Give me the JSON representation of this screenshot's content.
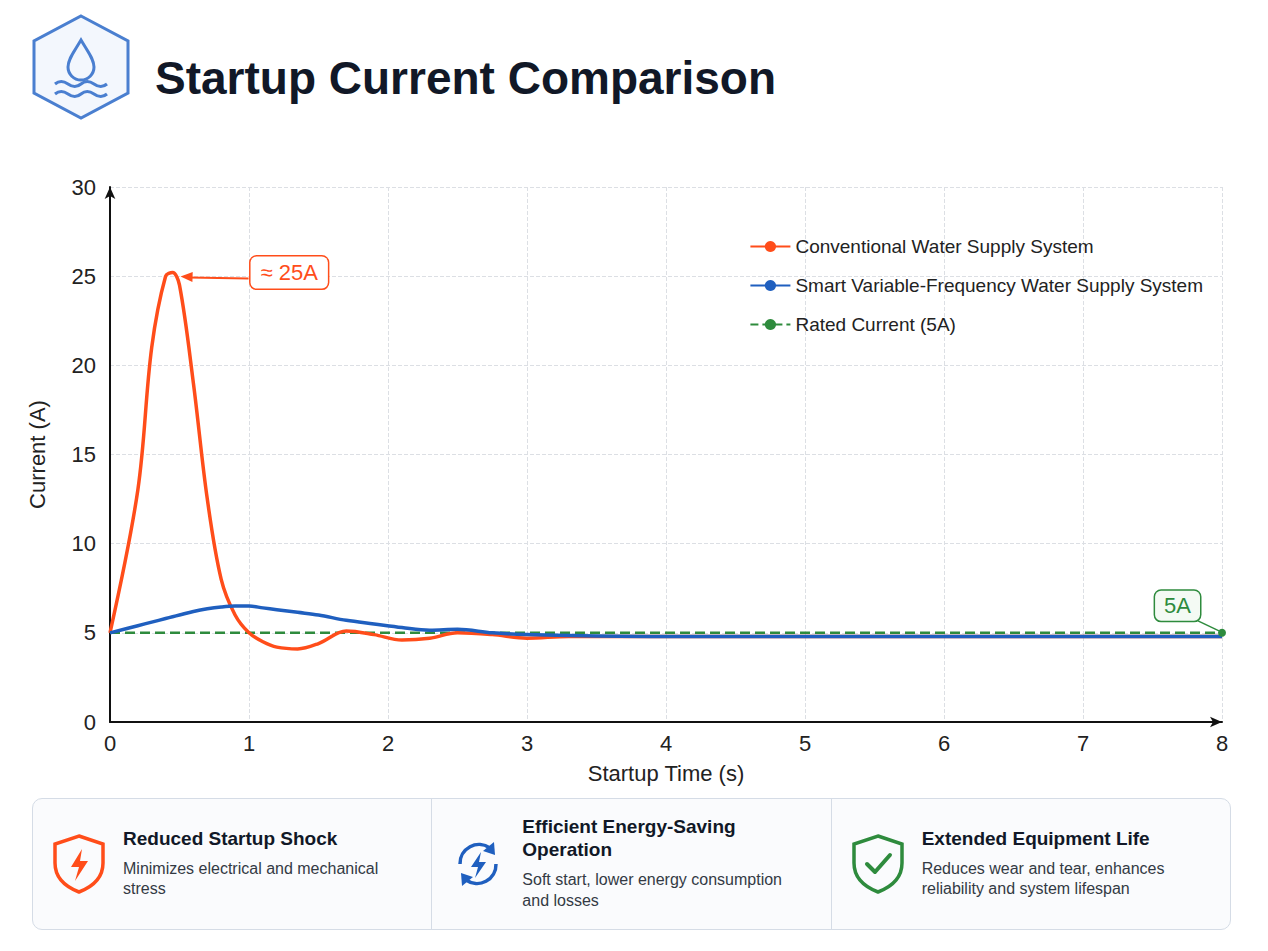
{
  "chart_data": {
    "type": "line",
    "title": "Startup Current Comparison",
    "x_label": "Startup Time (s)",
    "y_label": "Current (A)",
    "x": [
      0,
      0.2,
      0.3,
      0.4,
      0.45,
      0.5,
      0.6,
      0.7,
      0.8,
      0.9,
      1.0,
      1.1,
      1.2,
      1.35,
      1.5,
      1.7,
      1.9,
      2.1,
      2.3,
      2.5,
      2.75,
      3.0,
      3.3,
      4,
      5,
      6,
      7,
      8
    ],
    "series": [
      {
        "name": "Conventional Water Supply System",
        "color": "#ff4d1a",
        "line_style": "solid",
        "values": [
          5,
          13,
          21,
          25,
          25.2,
          24.5,
          19,
          12.5,
          8,
          6,
          5,
          4.5,
          4.2,
          4.1,
          4.4,
          5.1,
          4.9,
          4.6,
          4.7,
          5.0,
          4.9,
          4.7,
          4.8,
          4.8,
          4.8,
          4.8,
          4.8,
          4.8
        ]
      },
      {
        "name": "Smart Variable-Frequency Water Supply System",
        "color": "#1f5fbf",
        "line_style": "solid",
        "values": [
          5,
          5.4,
          5.6,
          5.8,
          5.9,
          6.0,
          6.2,
          6.35,
          6.45,
          6.5,
          6.5,
          6.4,
          6.3,
          6.15,
          6.0,
          5.7,
          5.5,
          5.3,
          5.15,
          5.2,
          5.0,
          4.9,
          4.85,
          4.8,
          4.8,
          4.8,
          4.8,
          4.8
        ]
      },
      {
        "name": "Rated Current (5A)",
        "color": "#2e8b3d",
        "line_style": "dashed",
        "values": [
          5,
          5,
          5,
          5,
          5,
          5,
          5,
          5,
          5,
          5,
          5,
          5,
          5,
          5,
          5,
          5,
          5,
          5,
          5,
          5,
          5,
          5,
          5,
          5,
          5,
          5,
          5,
          5
        ]
      }
    ],
    "xlim": [
      0,
      8
    ],
    "xticks": [
      0,
      1,
      2,
      3,
      4,
      5,
      6,
      7,
      8
    ],
    "ylim": [
      0,
      30
    ],
    "yticks": [
      0,
      5,
      10,
      15,
      20,
      25,
      30
    ],
    "grid": true,
    "legend": "upper right",
    "annotations": [
      {
        "text": "≈ 25A",
        "x": 0.45,
        "y": 25.2,
        "color": "#ff4d1a"
      },
      {
        "text": "5A",
        "x": 8,
        "y": 5,
        "color": "#2e8b3d"
      }
    ]
  },
  "features": [
    {
      "title": "Reduced Startup Shock",
      "text": "Minimizes electrical and mechanical stress",
      "color": "#ff4d1a"
    },
    {
      "title": "Efficient Energy-Saving Operation",
      "text": "Soft start, lower energy consumption and losses",
      "color": "#1f5fbf"
    },
    {
      "title": "Extended Equipment Life",
      "text": "Reduces wear and tear, enhances reliability and system lifespan",
      "color": "#2e8b3d"
    }
  ]
}
